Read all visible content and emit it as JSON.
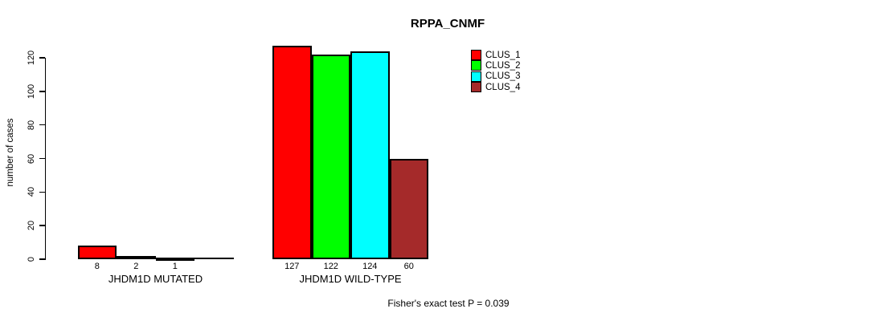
{
  "chart_data": {
    "type": "bar",
    "title": "RPPA_CNMF",
    "ylabel": "number of cases",
    "xlabel": "",
    "ylim": [
      0,
      130
    ],
    "yticks": [
      0,
      20,
      40,
      60,
      80,
      100,
      120
    ],
    "grid": false,
    "legend_position": "top-right",
    "categories": [
      "JHDM1D MUTATED",
      "JHDM1D WILD-TYPE"
    ],
    "series": [
      {
        "name": "CLUS_1",
        "color": "#FF0000",
        "values": [
          8,
          127
        ]
      },
      {
        "name": "CLUS_2",
        "color": "#00FF00",
        "values": [
          2,
          122
        ]
      },
      {
        "name": "CLUS_3",
        "color": "#00FFFF",
        "values": [
          1,
          124
        ]
      },
      {
        "name": "CLUS_4",
        "color": "#A52A2A",
        "values": [
          0,
          60
        ]
      }
    ],
    "bar_value_labels": {
      "JHDM1D MUTATED": [
        "8",
        "2",
        "1",
        ""
      ],
      "JHDM1D WILD-TYPE": [
        "127",
        "122",
        "124",
        "60"
      ]
    },
    "annotation": "Fisher's exact test P = 0.039",
    "axis_color": "#000000",
    "bar_outline_color": "#000000"
  }
}
